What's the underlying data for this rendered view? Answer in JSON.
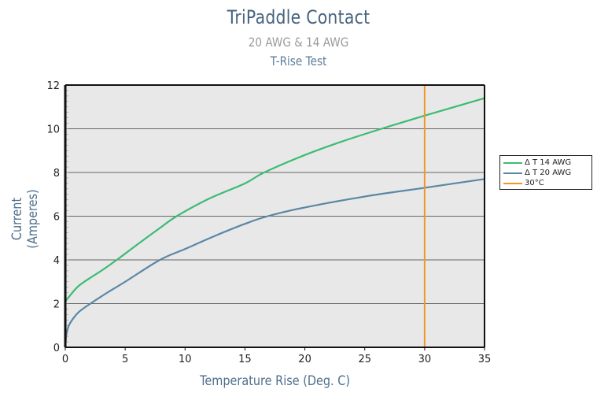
{
  "header": {
    "title": "TriPaddle Contact",
    "subtitle": "20 AWG & 14 AWG",
    "test": "T-Rise Test"
  },
  "axes": {
    "xlabel": "Temperature Rise (Deg. C)",
    "ylabel": "Current (Amperes)",
    "xticks": [
      "0",
      "5",
      "10",
      "15",
      "20",
      "25",
      "30",
      "35"
    ],
    "yticks": [
      "0",
      "2",
      "4",
      "6",
      "8",
      "10",
      "12"
    ]
  },
  "legend": [
    {
      "label": "Δ T 14 AWG",
      "color": "#3dbb74"
    },
    {
      "label": "Δ T 20 AWG",
      "color": "#5b87a6"
    },
    {
      "label": "30°C",
      "color": "#f0962a"
    }
  ],
  "chart_data": {
    "type": "line",
    "title": "TriPaddle Contact",
    "subtitle": [
      "20 AWG & 14 AWG",
      "T-Rise Test"
    ],
    "xlabel": "Temperature Rise (Deg. C)",
    "ylabel": "Current (Amperes)",
    "xlim": [
      0,
      35
    ],
    "ylim": [
      0,
      12
    ],
    "xticks": [
      0,
      5,
      10,
      15,
      20,
      25,
      30,
      35
    ],
    "yticks": [
      0,
      2,
      4,
      6,
      8,
      10,
      12
    ],
    "grid": "horizontal",
    "legend_position": "right",
    "series": [
      {
        "name": "Δ T 14 AWG",
        "color": "#3dbb74",
        "x": [
          0,
          1,
          2,
          3,
          4.3,
          6,
          8,
          9.3,
          12,
          15,
          16.6,
          20,
          23,
          26.4,
          30,
          35
        ],
        "y": [
          2.1,
          2.75,
          3.15,
          3.5,
          4.0,
          4.7,
          5.5,
          6.0,
          6.8,
          7.5,
          8.0,
          8.8,
          9.4,
          10.0,
          10.6,
          11.4
        ]
      },
      {
        "name": "Δ T 20 AWG",
        "color": "#5b87a6",
        "x": [
          0,
          0.1,
          0.3,
          0.7,
          1.2,
          2.1,
          3.5,
          5,
          7.9,
          10,
          12.5,
          15,
          16.9,
          20,
          25,
          30,
          35
        ],
        "y": [
          0,
          0.6,
          1.0,
          1.35,
          1.65,
          2.0,
          2.5,
          3.0,
          4.0,
          4.5,
          5.1,
          5.65,
          6.0,
          6.4,
          6.9,
          7.3,
          7.7
        ]
      },
      {
        "name": "30°C",
        "color": "#f0962a",
        "type": "vline",
        "x": 30
      }
    ]
  }
}
